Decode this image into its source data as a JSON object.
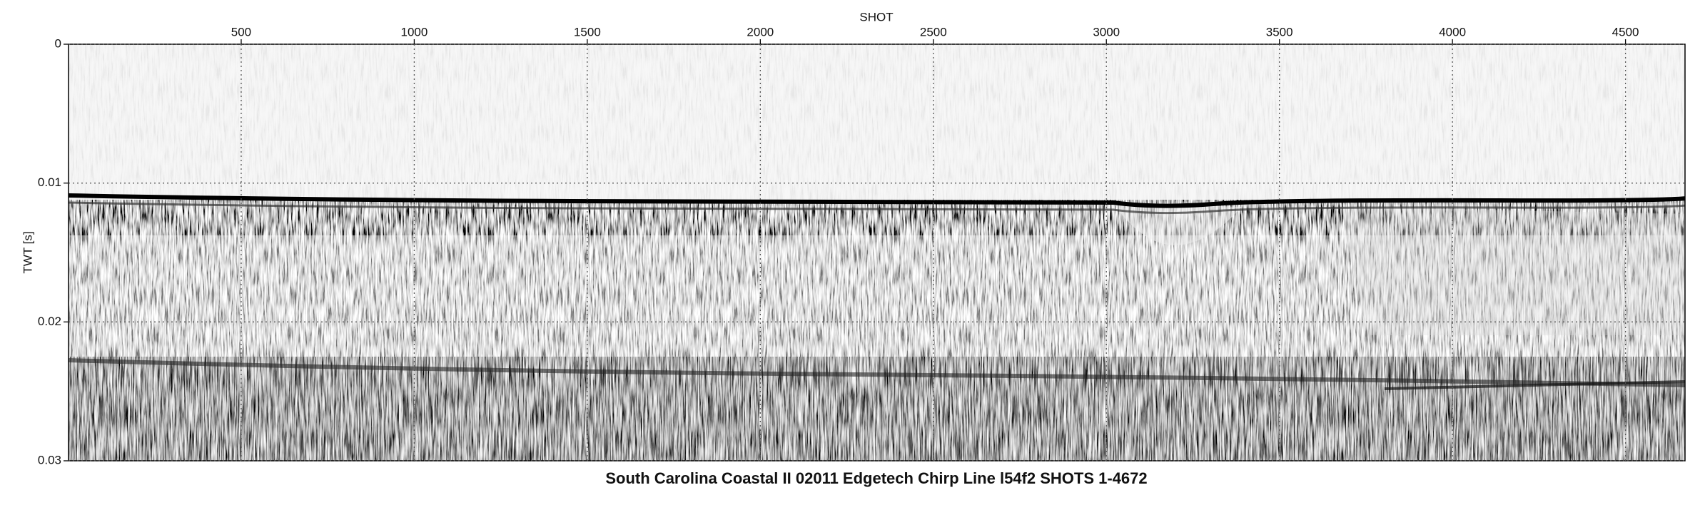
{
  "chart_data": {
    "type": "seismic-section",
    "title": "South Carolina Coastal II 02011 Edgetech Chirp Line l54f2 SHOTS 1-4672",
    "x_label": "SHOT",
    "y_label": "TWT [s]",
    "xlim": [
      1,
      4672
    ],
    "xticks": [
      500,
      1000,
      1500,
      2000,
      2500,
      3000,
      3500,
      4000,
      4500
    ],
    "ylim": [
      0,
      0.03
    ],
    "yticks": [
      0,
      0.01,
      0.02,
      0.03
    ],
    "y_inverted": true,
    "x_axis_position": "top",
    "grid": true
  }
}
